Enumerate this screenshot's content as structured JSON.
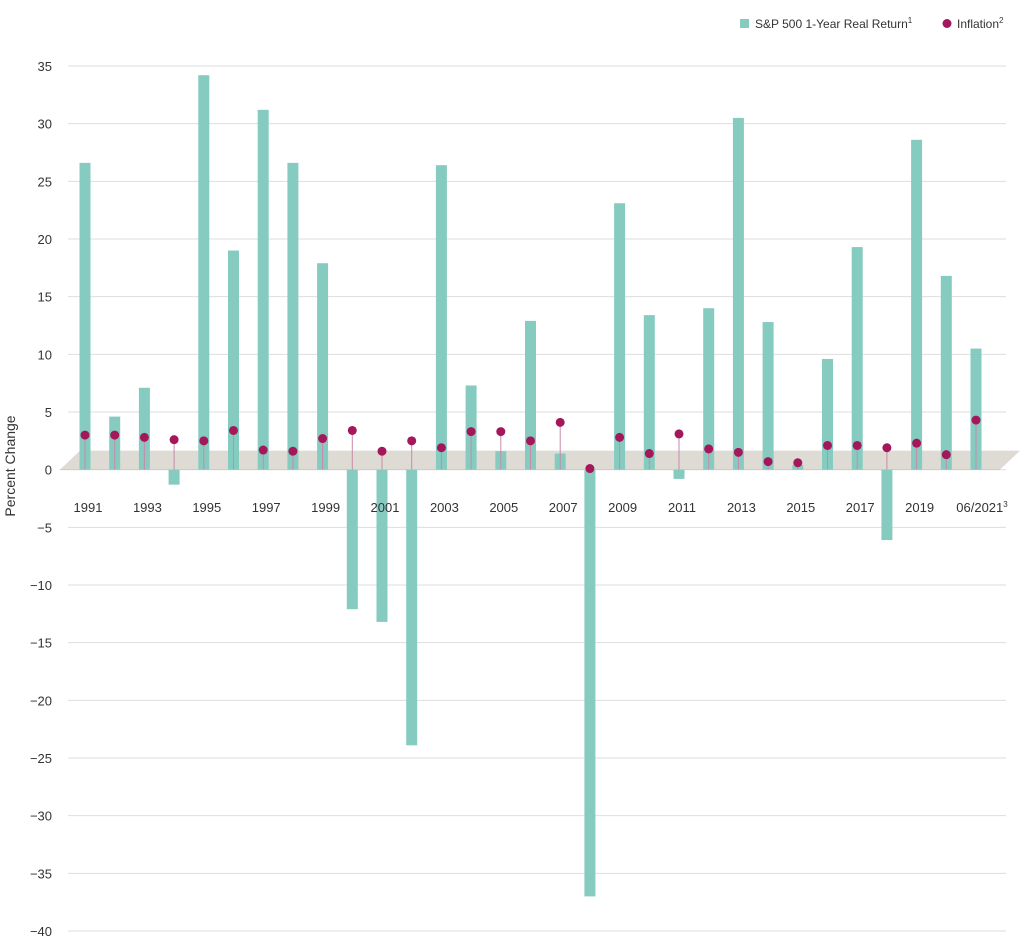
{
  "chart_data": {
    "type": "bar",
    "title": "",
    "xlabel": "",
    "ylabel": "Percent Change",
    "ylim": [
      -40,
      35
    ],
    "yticks": [
      35,
      30,
      25,
      20,
      15,
      10,
      5,
      0,
      -5,
      -10,
      -15,
      -20,
      -25,
      -30,
      -35,
      -40
    ],
    "ytick_labels": [
      "35",
      "30",
      "25",
      "20",
      "15",
      "10",
      "5",
      "0",
      "−5",
      "−10",
      "−15",
      "−20",
      "−25",
      "−30",
      "−35",
      "−40"
    ],
    "grid": true,
    "legend_position": "top-right",
    "categories": [
      "1991",
      "1992",
      "1993",
      "1994",
      "1995",
      "1996",
      "1997",
      "1998",
      "1999",
      "2000",
      "2001",
      "2002",
      "2003",
      "2004",
      "2005",
      "2006",
      "2007",
      "2008",
      "2009",
      "2010",
      "2011",
      "2012",
      "2013",
      "2014",
      "2015",
      "2016",
      "2017",
      "2018",
      "2019",
      "2020",
      "06/2021"
    ],
    "category_labels_shown": [
      "1991",
      "",
      "1993",
      "",
      "1995",
      "",
      "1997",
      "",
      "1999",
      "",
      "2001",
      "",
      "2003",
      "",
      "2005",
      "",
      "2007",
      "",
      "2009",
      "",
      "2011",
      "",
      "2013",
      "",
      "2015",
      "",
      "2017",
      "",
      "2019",
      "",
      "06/2021"
    ],
    "series": [
      {
        "name": "S&P 500 1-Year Real Return",
        "footnote": "1",
        "kind": "bar",
        "color": "#86CBBF",
        "values": [
          26.6,
          4.6,
          7.1,
          -1.3,
          34.2,
          19.0,
          31.2,
          26.6,
          17.9,
          -12.1,
          -13.2,
          -23.9,
          26.4,
          7.3,
          1.6,
          12.9,
          1.4,
          -37.0,
          23.1,
          13.4,
          -0.8,
          14.0,
          30.5,
          12.8,
          0.4,
          9.6,
          19.3,
          -6.1,
          28.6,
          16.8,
          10.5
        ]
      },
      {
        "name": "Inflation",
        "footnote": "2",
        "kind": "point",
        "color": "#A4175B",
        "values": [
          3.0,
          3.0,
          2.8,
          2.6,
          2.5,
          3.4,
          1.7,
          1.6,
          2.7,
          3.4,
          1.6,
          2.5,
          1.9,
          3.3,
          3.3,
          2.5,
          4.1,
          0.1,
          2.8,
          1.4,
          3.1,
          1.8,
          1.5,
          0.7,
          0.6,
          2.1,
          2.1,
          1.9,
          2.3,
          1.3,
          4.3
        ]
      }
    ],
    "last_label_footnote": "3"
  }
}
